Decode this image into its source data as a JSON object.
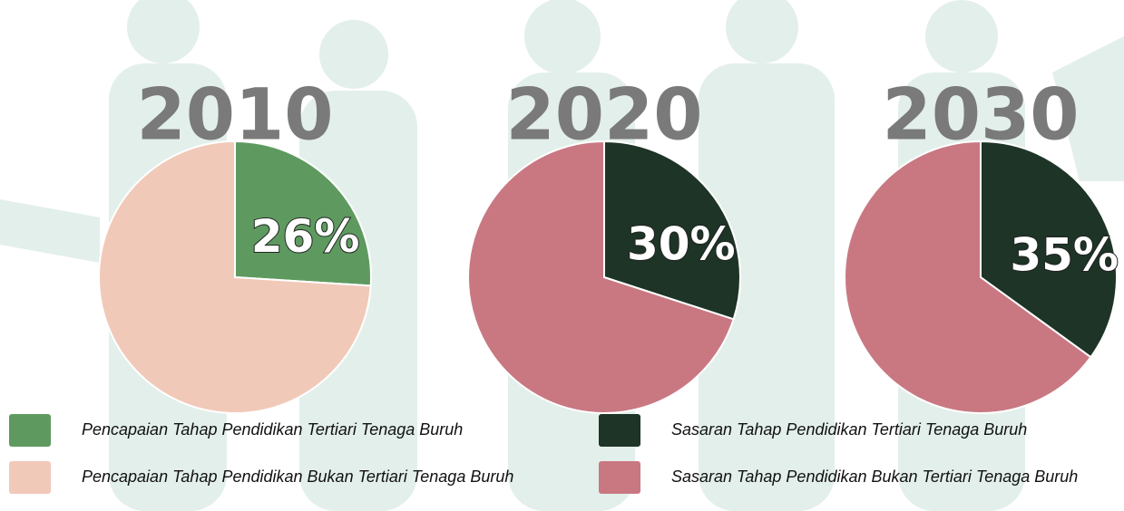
{
  "chart_data": [
    {
      "type": "pie",
      "title": "2010",
      "values": [
        26,
        74
      ],
      "value_labels": [
        "26%",
        null
      ],
      "colors": [
        "#5e9a60",
        "#f1c9b9"
      ]
    },
    {
      "type": "pie",
      "title": "2020",
      "values": [
        30,
        70
      ],
      "value_labels": [
        "30%",
        null
      ],
      "colors": [
        "#1d3426",
        "#c97882"
      ]
    },
    {
      "type": "pie",
      "title": "2030",
      "values": [
        35,
        65
      ],
      "value_labels": [
        "35%",
        null
      ],
      "colors": [
        "#1d3426",
        "#c97882"
      ]
    }
  ],
  "legend": [
    {
      "name": "Pencapaian Tahap Pendidikan Tertiari Tenaga Buruh",
      "color": "#5e9a60"
    },
    {
      "name": "Pencapaian Tahap Pendidikan Bukan Tertiari Tenaga Buruh",
      "color": "#f1c9b9"
    },
    {
      "name": "Sasaran Tahap Pendidikan Tertiari Tenaga Buruh",
      "color": "#1d3426"
    },
    {
      "name": "Sasaran Tahap Pendidikan Bukan Tertiari Tenaga Buruh",
      "color": "#c97882"
    }
  ]
}
